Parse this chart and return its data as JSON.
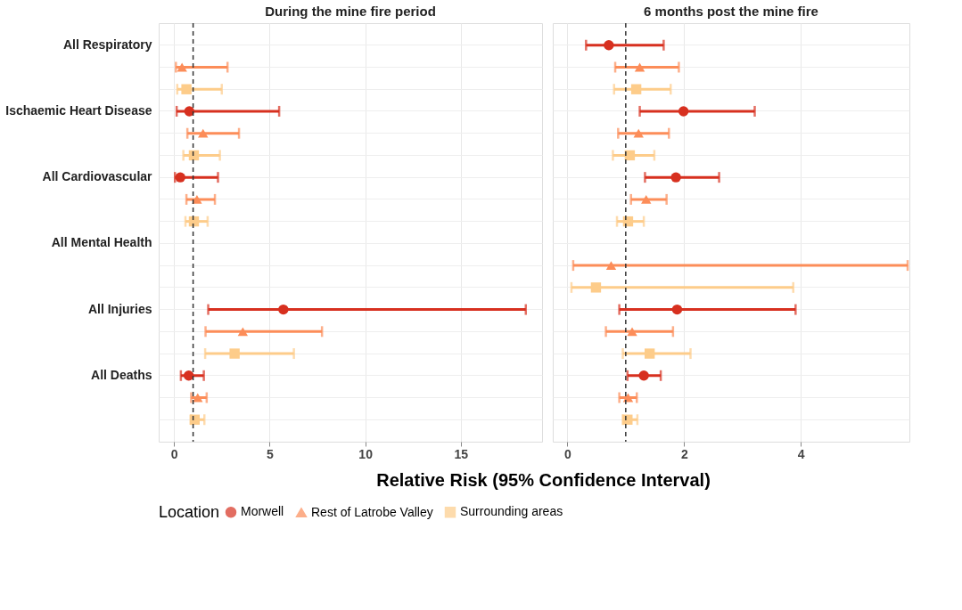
{
  "chart_data": [
    {
      "type": "scatter",
      "orientation": "horizontal",
      "title": "During the mine fire period",
      "xlabel": "Relative Risk (95% Confidence Interval)",
      "legend_title": "Location",
      "legend": "bottom",
      "grid": true,
      "categories": [
        "All Respiratory",
        null,
        null,
        "Ischaemic Heart Disease",
        null,
        null,
        "All Cardiovascular",
        null,
        null,
        "All Mental Health",
        null,
        null,
        "All Injuries",
        null,
        null,
        "All Deaths",
        null,
        null
      ],
      "xlim": [
        -0.8,
        19.25
      ],
      "xticks": [
        0,
        5,
        10,
        15
      ],
      "ref_lines": [
        {
          "axis": "x",
          "value": 1,
          "line_style": "dashed",
          "color": "#333333"
        }
      ],
      "series": [
        {
          "name": "Morwell",
          "color": "#d7301f",
          "marker": "circle",
          "values": [
            null,
            null,
            null,
            0.8,
            null,
            null,
            0.33,
            null,
            null,
            null,
            null,
            null,
            5.72,
            null,
            null,
            0.77,
            null,
            null
          ],
          "errors": [
            null,
            null,
            null,
            [
              0.14,
              5.5
            ],
            null,
            null,
            [
              0.05,
              2.3
            ],
            null,
            null,
            null,
            null,
            null,
            [
              1.79,
              18.4
            ],
            null,
            null,
            [
              0.36,
              1.56
            ],
            null,
            null
          ]
        },
        {
          "name": "Rest of Latrobe Valley",
          "color": "#fc8d59",
          "marker": "triangle",
          "values": [
            null,
            0.42,
            null,
            null,
            1.52,
            null,
            null,
            1.2,
            null,
            null,
            null,
            null,
            null,
            3.6,
            null,
            null,
            1.24,
            null
          ],
          "errors": [
            null,
            [
              0.1,
              2.8
            ],
            null,
            null,
            [
              0.7,
              3.4
            ],
            null,
            null,
            [
              0.65,
              2.14
            ],
            null,
            null,
            null,
            null,
            null,
            [
              1.65,
              7.74
            ],
            null,
            null,
            [
              0.9,
              1.71
            ],
            null
          ]
        },
        {
          "name": "Surrounding areas",
          "color": "#fdcc8a",
          "marker": "square",
          "values": [
            null,
            null,
            0.65,
            null,
            null,
            1.04,
            null,
            null,
            1.04,
            null,
            null,
            null,
            null,
            null,
            3.17,
            null,
            null,
            1.08
          ],
          "errors": [
            null,
            null,
            [
              0.17,
              2.5
            ],
            null,
            null,
            [
              0.49,
              2.4
            ],
            null,
            null,
            [
              0.6,
              1.76
            ],
            null,
            null,
            null,
            null,
            null,
            [
              1.63,
              6.27
            ],
            null,
            null,
            [
              0.9,
              1.59
            ]
          ]
        }
      ]
    },
    {
      "type": "scatter",
      "orientation": "horizontal",
      "title": "6 months post the mine fire",
      "grid": true,
      "tick_labels": "x",
      "categories": [
        null,
        null,
        null,
        null,
        null,
        null,
        null,
        null,
        null,
        null,
        null,
        null,
        null,
        null,
        null,
        null,
        null,
        null
      ],
      "xlim": [
        -0.25,
        5.86
      ],
      "xticks": [
        0,
        2,
        4
      ],
      "ref_lines": [
        {
          "axis": "x",
          "value": 1,
          "line_style": "dashed",
          "color": "#333333"
        }
      ],
      "series": [
        {
          "name": "Morwell",
          "color": "#d7301f",
          "marker": "circle",
          "values": [
            0.71,
            null,
            null,
            1.99,
            null,
            null,
            1.86,
            null,
            null,
            null,
            null,
            null,
            1.88,
            null,
            null,
            1.31,
            null,
            null
          ],
          "errors": [
            [
              0.32,
              1.65
            ],
            null,
            null,
            [
              1.24,
              3.21
            ],
            null,
            null,
            [
              1.33,
              2.6
            ],
            null,
            null,
            null,
            null,
            null,
            [
              0.89,
              3.91
            ],
            null,
            null,
            [
              1.03,
              1.6
            ],
            null,
            null
          ]
        },
        {
          "name": "Rest of Latrobe Valley",
          "color": "#fc8d59",
          "marker": "triangle",
          "values": [
            null,
            1.24,
            null,
            null,
            1.22,
            null,
            null,
            1.35,
            null,
            null,
            0.75,
            null,
            null,
            1.11,
            null,
            null,
            1.04,
            null
          ],
          "errors": [
            null,
            [
              0.82,
              1.91
            ],
            null,
            null,
            [
              0.87,
              1.74
            ],
            null,
            null,
            [
              1.09,
              1.7
            ],
            null,
            null,
            [
              0.1,
              5.83
            ],
            null,
            null,
            [
              0.66,
              1.81
            ],
            null,
            null,
            [
              0.89,
              1.19
            ],
            null
          ]
        },
        {
          "name": "Surrounding areas",
          "color": "#fdcc8a",
          "marker": "square",
          "values": [
            null,
            null,
            1.18,
            null,
            null,
            1.07,
            null,
            null,
            1.04,
            null,
            null,
            0.49,
            null,
            null,
            1.41,
            null,
            null,
            1.03
          ],
          "errors": [
            null,
            null,
            [
              0.8,
              1.77
            ],
            null,
            null,
            [
              0.78,
              1.49
            ],
            null,
            null,
            [
              0.85,
              1.31
            ],
            null,
            null,
            [
              0.07,
              3.87
            ],
            null,
            null,
            [
              0.95,
              2.11
            ],
            null,
            null,
            [
              0.95,
              1.2
            ]
          ]
        }
      ]
    }
  ]
}
